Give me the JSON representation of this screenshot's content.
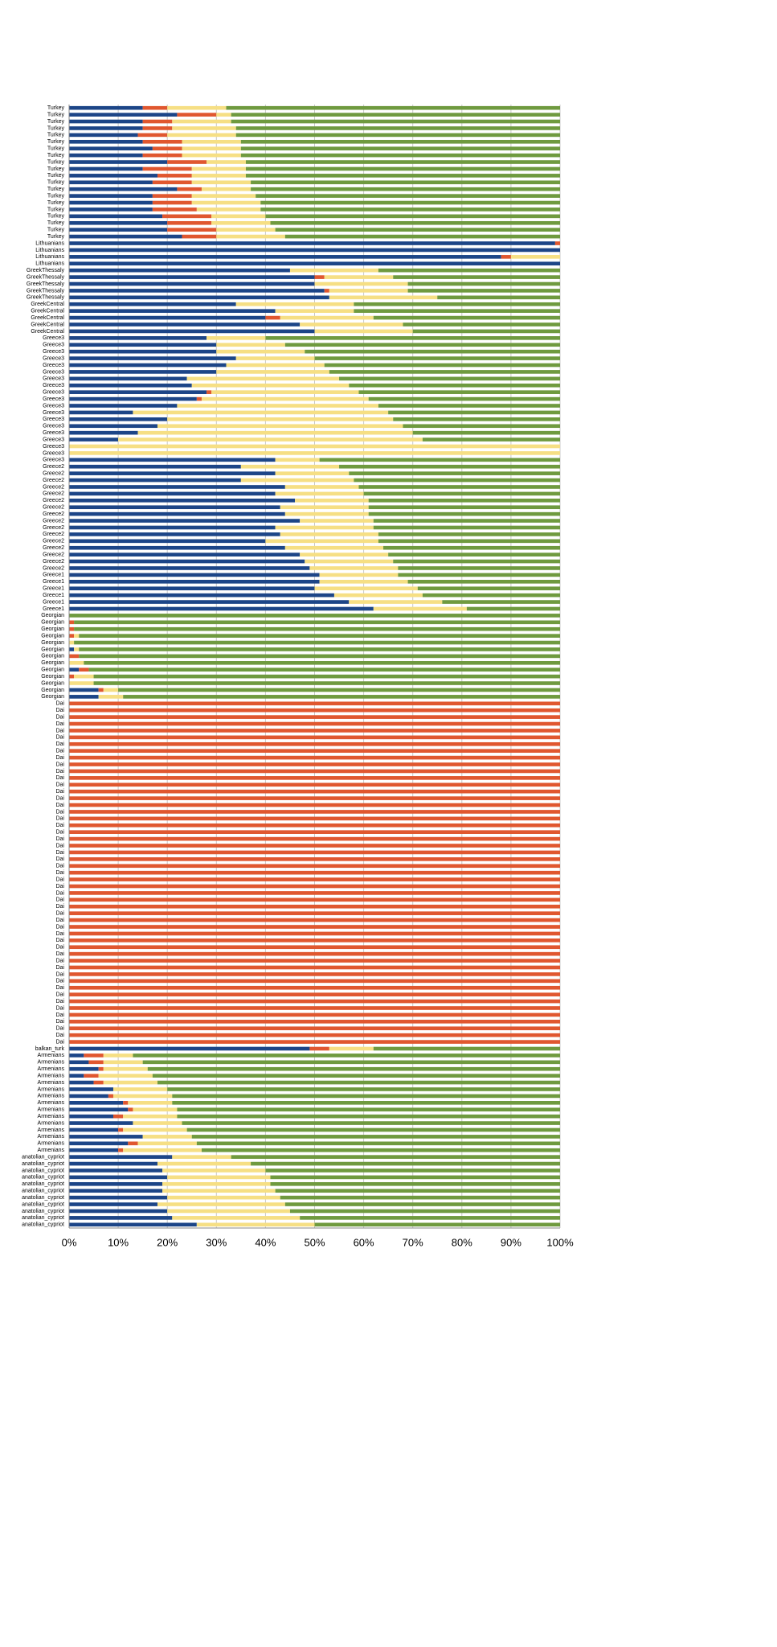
{
  "chart_data": {
    "type": "stacked-barh",
    "categories": [
      "Turkey",
      "Turkey",
      "Turkey",
      "Turkey",
      "Turkey",
      "Turkey",
      "Turkey",
      "Turkey",
      "Turkey",
      "Turkey",
      "Turkey",
      "Turkey",
      "Turkey",
      "Turkey",
      "Turkey",
      "Turkey",
      "Turkey",
      "Turkey",
      "Turkey",
      "Turkey",
      "Lithuanians",
      "Lithuanians",
      "Lithuanians",
      "Lithuanians",
      "GreekThessaly",
      "GreekThessaly",
      "GreekThessaly",
      "GreekThessaly",
      "GreekThessaly",
      "GreekCentral",
      "GreekCentral",
      "GreekCentral",
      "GreekCentral",
      "GreekCentral",
      "Greece3",
      "Greece3",
      "Greece3",
      "Greece3",
      "Greece3",
      "Greece3",
      "Greece3",
      "Greece3",
      "Greece3",
      "Greece3",
      "Greece3",
      "Greece3",
      "Greece3",
      "Greece3",
      "Greece3",
      "Greece3",
      "Greece3",
      "Greece3",
      "Greece3",
      "Greece2",
      "Greece2",
      "Greece2",
      "Greece2",
      "Greece2",
      "Greece2",
      "Greece2",
      "Greece2",
      "Greece2",
      "Greece2",
      "Greece2",
      "Greece2",
      "Greece2",
      "Greece2",
      "Greece2",
      "Greece2",
      "Greece1",
      "Greece1",
      "Greece1",
      "Greece1",
      "Greece1",
      "Greece1",
      "Georgian",
      "Georgian",
      "Georgian",
      "Georgian",
      "Georgian",
      "Georgian",
      "Georgian",
      "Georgian",
      "Georgian",
      "Georgian",
      "Georgian",
      "Georgian",
      "Georgian",
      "Dai",
      "Dai",
      "Dai",
      "Dai",
      "Dai",
      "Dai",
      "Dai",
      "Dai",
      "Dai",
      "Dai",
      "Dai",
      "Dai",
      "Dai",
      "Dai",
      "Dai",
      "Dai",
      "Dai",
      "Dai",
      "Dai",
      "Dai",
      "Dai",
      "Dai",
      "Dai",
      "Dai",
      "Dai",
      "Dai",
      "Dai",
      "Dai",
      "Dai",
      "Dai",
      "Dai",
      "Dai",
      "Dai",
      "Dai",
      "Dai",
      "Dai",
      "Dai",
      "Dai",
      "Dai",
      "Dai",
      "Dai",
      "Dai",
      "Dai",
      "Dai",
      "Dai",
      "Dai",
      "Dai",
      "Dai",
      "Dai",
      "Dai",
      "Dai",
      "balkan_turk",
      "Armenians",
      "Armenians",
      "Armenians",
      "Armenians",
      "Armenians",
      "Armenians",
      "Armenians",
      "Armenians",
      "Armenians",
      "Armenians",
      "Armenians",
      "Armenians",
      "Armenians",
      "Armenians",
      "Armenians",
      "anatolian_cypriot",
      "anatolian_cypriot",
      "anatolian_cypriot",
      "anatolian_cypriot",
      "anatolian_cypriot",
      "anatolian_cypriot",
      "anatolian_cypriot",
      "anatolian_cypriot",
      "anatolian_cypriot",
      "anatolian_cypriot",
      "anatolian_cypriot"
    ],
    "series": [
      {
        "color": "#1c4587",
        "values": [
          15,
          22,
          15,
          15,
          14,
          15,
          17,
          15,
          20,
          15,
          18,
          17,
          22,
          17,
          17,
          17,
          19,
          20,
          20,
          23,
          99,
          100,
          88,
          100,
          45,
          50,
          50,
          52,
          53,
          34,
          42,
          40,
          47,
          50,
          28,
          30,
          30,
          34,
          32,
          30,
          24,
          25,
          28,
          26,
          22,
          13,
          20,
          18,
          14,
          10,
          0,
          0,
          42,
          35,
          42,
          35,
          44,
          42,
          46,
          43,
          44,
          47,
          42,
          43,
          40,
          44,
          47,
          48,
          49,
          51,
          51,
          50,
          54,
          57,
          62,
          0,
          0,
          0,
          0,
          0,
          1,
          0,
          0,
          2,
          0,
          0,
          6,
          6,
          0,
          0,
          0,
          0,
          0,
          0,
          0,
          0,
          0,
          0,
          0,
          0,
          0,
          0,
          0,
          0,
          0,
          0,
          0,
          0,
          0,
          0,
          0,
          0,
          0,
          0,
          0,
          0,
          0,
          0,
          0,
          0,
          0,
          0,
          0,
          0,
          0,
          0,
          0,
          0,
          0,
          0,
          0,
          0,
          0,
          0,
          0,
          0,
          0,
          0,
          0,
          49,
          3,
          4,
          6,
          3,
          5,
          9,
          8,
          11,
          12,
          9,
          13,
          10,
          15,
          12,
          10,
          21,
          18,
          19,
          20,
          19,
          19,
          20,
          18,
          20,
          21,
          26
        ]
      },
      {
        "color": "#e0572f",
        "values": [
          5,
          8,
          6,
          6,
          6,
          8,
          6,
          8,
          8,
          10,
          7,
          8,
          5,
          8,
          8,
          9,
          10,
          9,
          10,
          7,
          1,
          0,
          2,
          0,
          0,
          2,
          0,
          1,
          0,
          0,
          0,
          3,
          0,
          0,
          0,
          0,
          0,
          0,
          0,
          0,
          0,
          0,
          1,
          1,
          0,
          0,
          0,
          0,
          0,
          0,
          0,
          0,
          0,
          0,
          0,
          0,
          0,
          0,
          0,
          0,
          0,
          0,
          0,
          0,
          0,
          0,
          0,
          0,
          0,
          0,
          0,
          0,
          0,
          0,
          0,
          0,
          1,
          1,
          1,
          0,
          0,
          2,
          0,
          2,
          1,
          0,
          1,
          0,
          100,
          100,
          100,
          100,
          100,
          100,
          100,
          100,
          100,
          100,
          100,
          100,
          100,
          100,
          100,
          100,
          100,
          100,
          100,
          100,
          100,
          100,
          100,
          100,
          100,
          100,
          100,
          100,
          100,
          100,
          100,
          100,
          100,
          100,
          100,
          100,
          100,
          100,
          100,
          100,
          100,
          100,
          100,
          100,
          100,
          100,
          100,
          100,
          100,
          100,
          100,
          4,
          4,
          3,
          1,
          3,
          2,
          0,
          1,
          1,
          1,
          2,
          0,
          1,
          0,
          2,
          1,
          0,
          0,
          0,
          0,
          0,
          0,
          0,
          0,
          0,
          0,
          0
        ]
      },
      {
        "color": "#f6df84",
        "values": [
          12,
          3,
          12,
          13,
          14,
          12,
          12,
          12,
          8,
          11,
          11,
          12,
          10,
          13,
          14,
          13,
          11,
          12,
          12,
          14,
          0,
          0,
          10,
          0,
          18,
          14,
          19,
          16,
          22,
          24,
          16,
          19,
          21,
          20,
          12,
          14,
          18,
          16,
          20,
          23,
          31,
          32,
          30,
          34,
          41,
          52,
          46,
          50,
          56,
          62,
          100,
          100,
          9,
          20,
          15,
          23,
          15,
          18,
          15,
          18,
          17,
          15,
          20,
          20,
          23,
          20,
          18,
          18,
          18,
          16,
          18,
          21,
          18,
          19,
          19,
          0,
          0,
          0,
          1,
          1,
          1,
          0,
          3,
          0,
          4,
          5,
          3,
          5,
          0,
          0,
          0,
          0,
          0,
          0,
          0,
          0,
          0,
          0,
          0,
          0,
          0,
          0,
          0,
          0,
          0,
          0,
          0,
          0,
          0,
          0,
          0,
          0,
          0,
          0,
          0,
          0,
          0,
          0,
          0,
          0,
          0,
          0,
          0,
          0,
          0,
          0,
          0,
          0,
          0,
          0,
          0,
          0,
          0,
          0,
          0,
          0,
          0,
          0,
          0,
          9,
          6,
          8,
          9,
          11,
          11,
          11,
          12,
          9,
          9,
          11,
          10,
          13,
          10,
          12,
          16,
          12,
          19,
          21,
          21,
          22,
          23,
          23,
          26,
          25,
          26,
          24
        ]
      },
      {
        "color": "#6f9a3f",
        "values": [
          68,
          67,
          67,
          66,
          66,
          65,
          65,
          65,
          64,
          64,
          64,
          63,
          63,
          62,
          61,
          61,
          60,
          59,
          58,
          56,
          0,
          0,
          0,
          0,
          37,
          34,
          31,
          31,
          25,
          42,
          42,
          38,
          32,
          30,
          60,
          56,
          52,
          50,
          48,
          47,
          45,
          43,
          41,
          39,
          37,
          35,
          34,
          32,
          30,
          28,
          0,
          0,
          49,
          45,
          43,
          42,
          41,
          40,
          39,
          39,
          39,
          38,
          38,
          37,
          37,
          36,
          35,
          34,
          33,
          33,
          31,
          29,
          28,
          24,
          19,
          100,
          99,
          99,
          98,
          99,
          98,
          98,
          97,
          96,
          95,
          95,
          90,
          89,
          0,
          0,
          0,
          0,
          0,
          0,
          0,
          0,
          0,
          0,
          0,
          0,
          0,
          0,
          0,
          0,
          0,
          0,
          0,
          0,
          0,
          0,
          0,
          0,
          0,
          0,
          0,
          0,
          0,
          0,
          0,
          0,
          0,
          0,
          0,
          0,
          0,
          0,
          0,
          0,
          0,
          0,
          0,
          0,
          0,
          0,
          0,
          0,
          0,
          0,
          0,
          38,
          87,
          85,
          84,
          83,
          82,
          80,
          79,
          79,
          78,
          78,
          77,
          76,
          75,
          74,
          73,
          67,
          63,
          60,
          59,
          59,
          58,
          57,
          56,
          55,
          53,
          50
        ]
      }
    ],
    "xlim": [
      0,
      100
    ],
    "xticks": [
      {
        "value": 0,
        "label": "0%"
      },
      {
        "value": 10,
        "label": "10%"
      },
      {
        "value": 20,
        "label": "20%"
      },
      {
        "value": 30,
        "label": "30%"
      },
      {
        "value": 40,
        "label": "40%"
      },
      {
        "value": 50,
        "label": "50%"
      },
      {
        "value": 60,
        "label": "60%"
      },
      {
        "value": 70,
        "label": "70%"
      },
      {
        "value": 80,
        "label": "80%"
      },
      {
        "value": 90,
        "label": "90%"
      },
      {
        "value": 100,
        "label": "100%"
      }
    ],
    "grid": true
  }
}
